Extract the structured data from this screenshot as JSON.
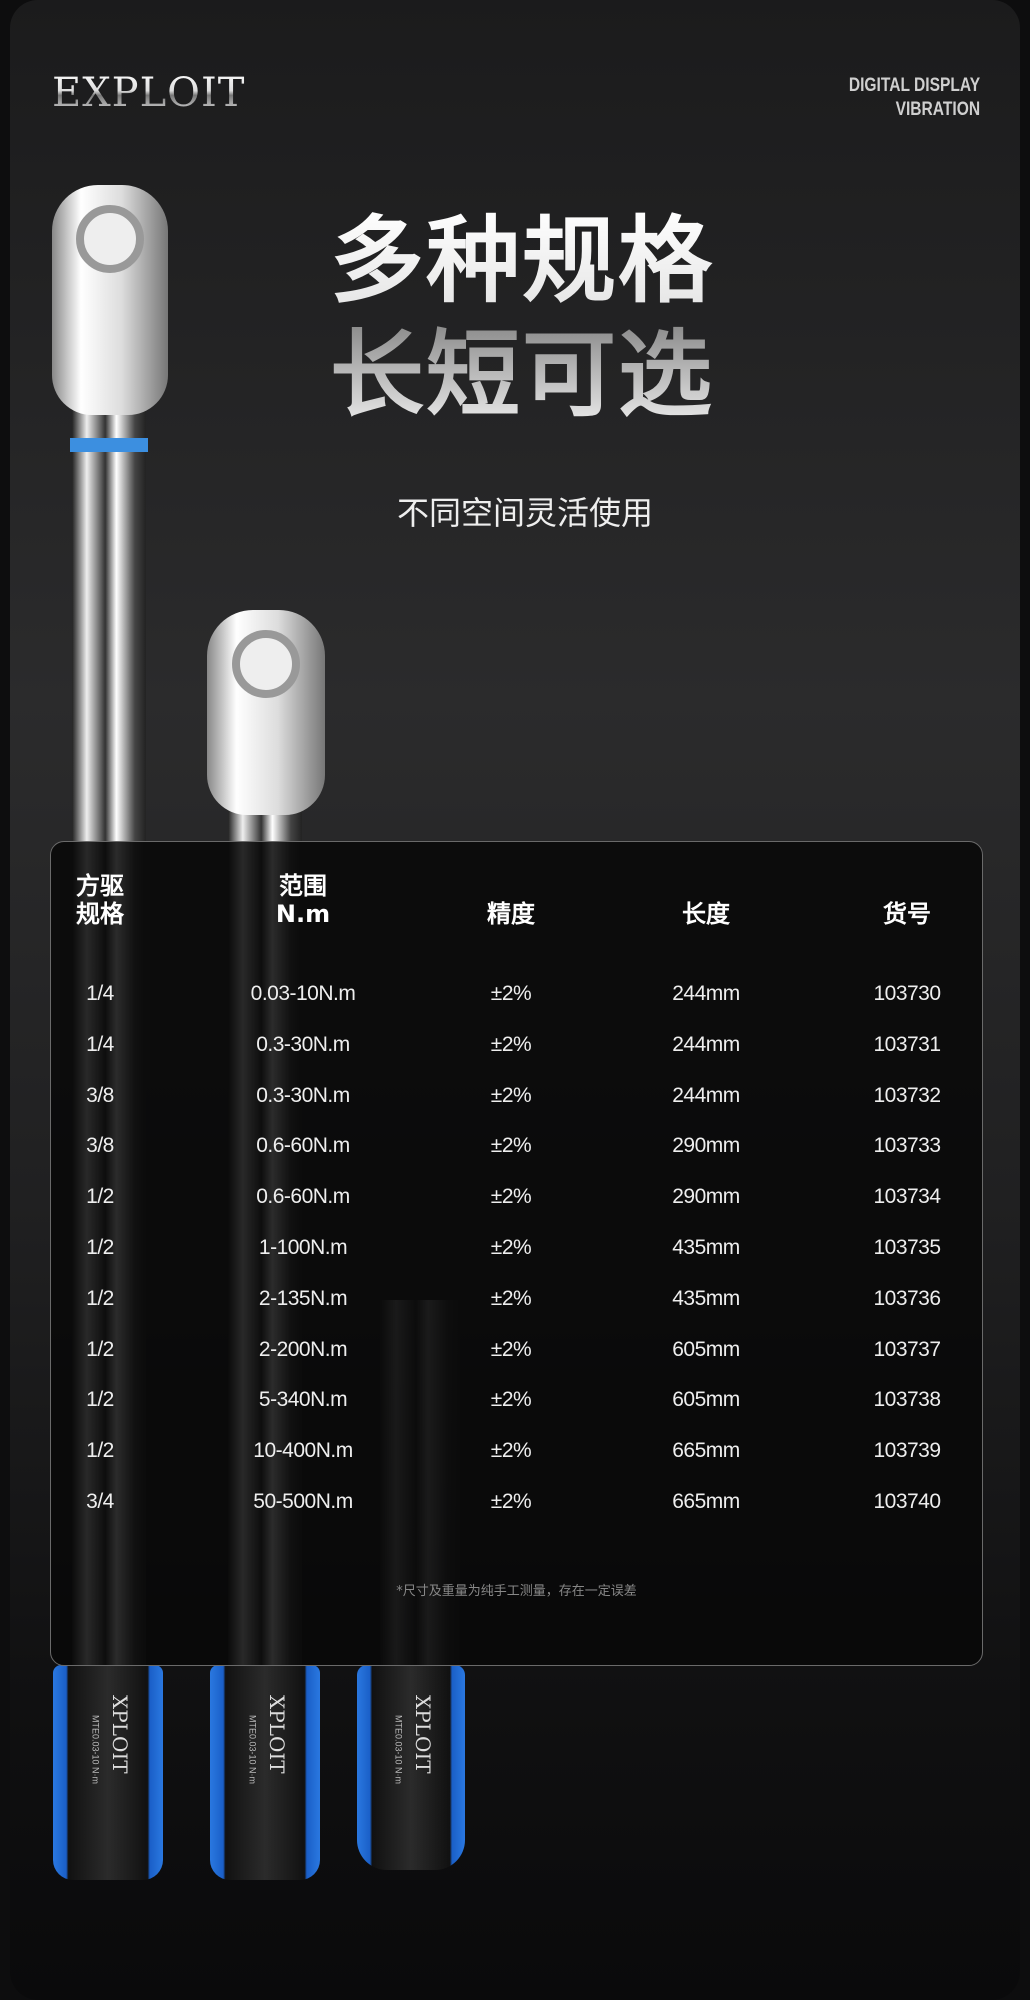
{
  "brand": {
    "logo": "EXPLOIT",
    "tagline_line1": "DIGITAL DISPLAY",
    "tagline_line2": "VIBRATION"
  },
  "hero": {
    "title_line1": "多种规格",
    "title_line2": "长短可选",
    "subtitle": "不同空间灵活使用"
  },
  "table": {
    "headers": [
      {
        "line1": "方驱",
        "line2": "规格"
      },
      {
        "line1": "范围",
        "line2": "N.m"
      },
      {
        "line1": "精度",
        "line2": ""
      },
      {
        "line1": "长度",
        "line2": ""
      },
      {
        "line1": "货号",
        "line2": ""
      }
    ],
    "rows": [
      [
        "1/4",
        "0.03-10N.m",
        "±2%",
        "244mm",
        "103730"
      ],
      [
        "1/4",
        "0.3-30N.m",
        "±2%",
        "244mm",
        "103731"
      ],
      [
        "3/8",
        "0.3-30N.m",
        "±2%",
        "244mm",
        "103732"
      ],
      [
        "3/8",
        "0.6-60N.m",
        "±2%",
        "290mm",
        "103733"
      ],
      [
        "1/2",
        "0.6-60N.m",
        "±2%",
        "290mm",
        "103734"
      ],
      [
        "1/2",
        "1-100N.m",
        "±2%",
        "435mm",
        "103735"
      ],
      [
        "1/2",
        "2-135N.m",
        "±2%",
        "435mm",
        "103736"
      ],
      [
        "1/2",
        "2-200N.m",
        "±2%",
        "605mm",
        "103737"
      ],
      [
        "1/2",
        "5-340N.m",
        "±2%",
        "605mm",
        "103738"
      ],
      [
        "1/2",
        "10-400N.m",
        "±2%",
        "665mm",
        "103739"
      ],
      [
        "3/4",
        "50-500N.m",
        "±2%",
        "665mm",
        "103740"
      ]
    ],
    "footnote": "*尺寸及重量为纯手工测量，存在一定误差"
  },
  "product": {
    "handle_logo": "XPLOIT",
    "handle_marking": "MTE0.03-10 N·m"
  },
  "colors": {
    "accent_blue": "#2a78e0",
    "background": "#1b1b1c"
  }
}
